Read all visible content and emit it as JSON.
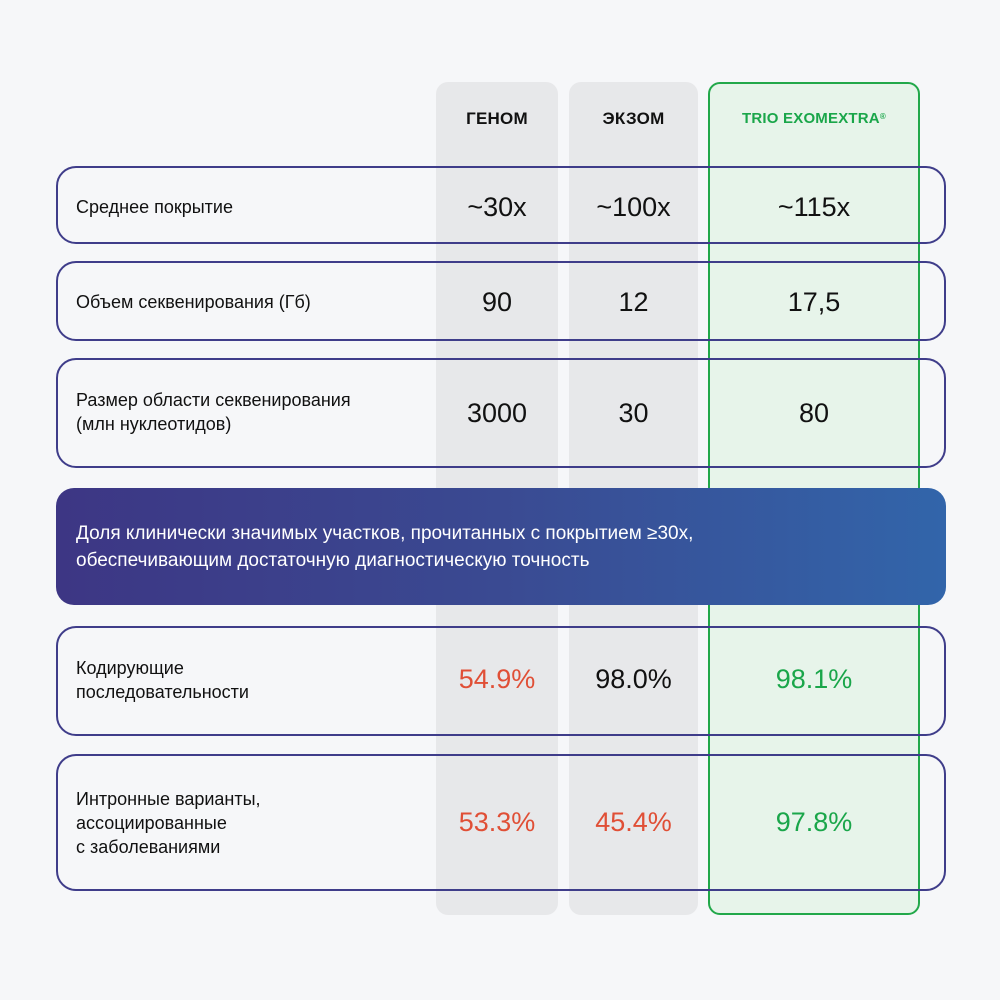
{
  "columns": {
    "genome": "ГЕНОМ",
    "exome": "ЭКЗОМ",
    "trio": "TRIO EXOMEXTRA",
    "trio_mark": "®"
  },
  "rows": [
    {
      "label": "Среднее покрытие",
      "genome": "~30x",
      "exome": "~100x",
      "trio": "~115x"
    },
    {
      "label": "Объем секвенирования (Гб)",
      "genome": "90",
      "exome": "12",
      "trio": "17,5"
    },
    {
      "label_line1": "Размер области секвенирования",
      "label_line2": "(млн нуклеотидов)",
      "genome": "3000",
      "exome": "30",
      "trio": "80"
    }
  ],
  "banner": {
    "line1": "Доля клинически значимых участков, прочитанных с покрытием ≥30x,",
    "line2": "обеспечивающим достаточную диагностическую точность"
  },
  "coverage_rows": [
    {
      "label_line1": "Кодирующие",
      "label_line2": "последовательности",
      "genome": "54.9%",
      "exome": "98.0%",
      "trio": "98.1%"
    },
    {
      "label_line1": "Интронные варианты,",
      "label_line2": "ассоциированные",
      "label_line3": "с заболеваниями",
      "genome": "53.3%",
      "exome": "45.4%",
      "trio": "97.8%"
    }
  ],
  "colors": {
    "row_border": "#3f3d8a",
    "column_bg": "#e7e8ea",
    "trio_accent": "#1aa64a",
    "bad_value": "#e04f36",
    "banner_start": "#3d3684",
    "banner_end": "#3265aa"
  }
}
